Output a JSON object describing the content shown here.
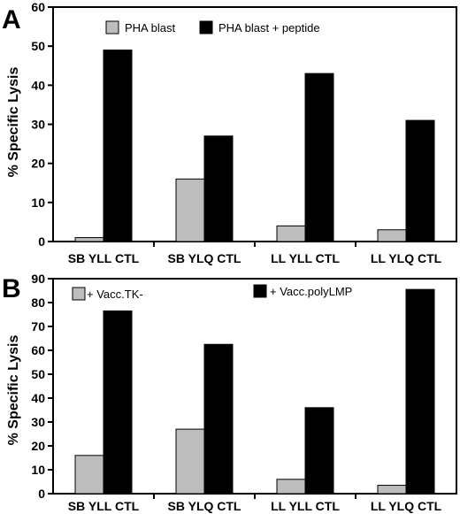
{
  "chart_data": [
    {
      "type": "bar",
      "panel_label": "A",
      "ylabel": "% Specific Lysis",
      "ylim": [
        0,
        60
      ],
      "yticks": [
        0,
        10,
        20,
        30,
        40,
        50,
        60
      ],
      "categories": [
        "SB YLL CTL",
        "SB YLQ CTL",
        "LL YLL CTL",
        "LL YLQ CTL"
      ],
      "series": [
        {
          "name": "PHA blast",
          "values": [
            1,
            16,
            4,
            3
          ],
          "color": "#bdbdbd"
        },
        {
          "name": "PHA blast + peptide",
          "values": [
            49,
            27,
            43,
            31
          ],
          "color": "#000000"
        }
      ],
      "grid": false,
      "legend": "top"
    },
    {
      "type": "bar",
      "panel_label": "B",
      "ylabel": "% Specific Lysis",
      "ylim": [
        0,
        90
      ],
      "yticks": [
        0,
        10,
        20,
        30,
        40,
        50,
        60,
        70,
        80,
        90
      ],
      "categories": [
        "SB YLL CTL",
        "SB YLQ CTL",
        "LL YLL CTL",
        "LL YLQ CTL"
      ],
      "series": [
        {
          "name": "+ Vacc.TK-",
          "values": [
            16,
            27,
            6,
            3.5
          ],
          "color": "#bdbdbd"
        },
        {
          "name": "+ Vacc.polyLMP",
          "values": [
            76.5,
            62.5,
            36,
            85.5
          ],
          "color": "#000000"
        }
      ],
      "grid": false,
      "legend": "top"
    }
  ]
}
